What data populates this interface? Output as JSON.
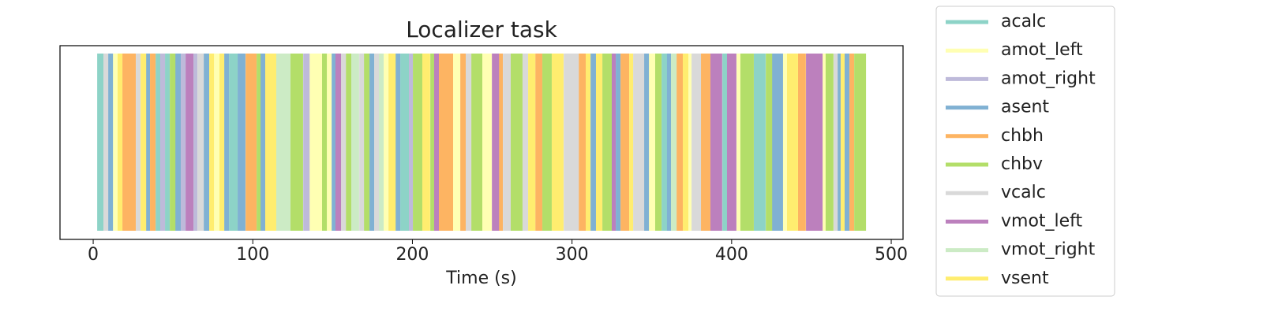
{
  "chart_data": {
    "type": "event",
    "title": "Localizer task",
    "xlabel": "Time (s)",
    "xlim": [
      -20.8,
      507.4
    ],
    "xticks": [
      0,
      100,
      200,
      300,
      400,
      500
    ],
    "series": [
      {
        "name": "acalc",
        "color": "#8dd3c7",
        "onsets": [
          2.5,
          39.1,
          45.0,
          85.1,
          192.4,
          356.1,
          394.2,
          413.9
        ],
        "durations": [
          4.0,
          3.0,
          3.0,
          5.4,
          5.4,
          3.5,
          3.0,
          7.4
        ]
      },
      {
        "name": "amot_left",
        "color": "#ffffb3",
        "onsets": [
          12.4,
          75.7,
          135.5,
          146.4,
          182.0,
          225.5,
          243.8,
          348.2,
          372.9,
          403.1,
          432.2,
          457.0
        ],
        "durations": [
          3.0,
          3.5,
          7.9,
          3.0,
          3.0,
          4.5,
          5.9,
          4.0,
          2.0,
          2.5,
          2.5,
          2.0
        ]
      },
      {
        "name": "amot_right",
        "color": "#bebada",
        "onsets": [
          42.0,
          54.9,
          62.8,
          131.6,
          197.8
        ],
        "durations": [
          3.0,
          3.0,
          2.5,
          4.0,
          2.5
        ]
      },
      {
        "name": "asent",
        "color": "#80b1d3",
        "onsets": [
          9.4,
          33.1,
          51.4,
          69.2,
          82.1,
          90.5,
          104.8,
          149.4,
          173.1,
          189.4,
          311.6,
          327.4,
          345.2,
          359.5,
          425.3,
          466.4,
          470.8
        ],
        "durations": [
          3.0,
          2.5,
          3.5,
          3.5,
          3.0,
          4.9,
          3.0,
          2.5,
          3.0,
          3.0,
          3.5,
          3.0,
          3.0,
          2.5,
          6.9,
          2.0,
          3.0
        ]
      },
      {
        "name": "chbh",
        "color": "#fdb462",
        "onsets": [
          18.3,
          35.6,
          95.5,
          216.6,
          230.0,
          254.2,
          277.0,
          304.2,
          330.4,
          365.5,
          380.8,
          441.6,
          473.8
        ],
        "durations": [
          8.4,
          3.5,
          6.9,
          8.9,
          3.5,
          2.5,
          4.5,
          4.5,
          5.4,
          4.0,
          5.9,
          4.9,
          3.0
        ]
      },
      {
        "name": "chbv",
        "color": "#b3de69",
        "onsets": [
          48.0,
          102.4,
          123.6,
          143.4,
          158.3,
          169.6,
          200.3,
          211.2,
          236.9,
          261.6,
          281.4,
          319.0,
          352.1,
          405.5,
          421.4,
          458.9,
          476.8
        ],
        "durations": [
          3.5,
          2.5,
          7.9,
          3.0,
          3.5,
          3.5,
          5.9,
          2.5,
          6.9,
          7.4,
          5.9,
          5.9,
          4.0,
          8.4,
          4.0,
          4.9,
          7.4
        ]
      },
      {
        "name": "vcalc",
        "color": "#d9d9d9",
        "onsets": [
          6.4,
          26.7,
          65.3,
          155.3,
          166.7,
          176.1,
          233.4,
          256.7,
          269.0,
          294.8,
          338.3,
          374.9,
          463.9
        ],
        "durations": [
          3.0,
          3.0,
          4.0,
          3.0,
          3.0,
          3.0,
          3.5,
          4.9,
          3.5,
          9.4,
          6.9,
          5.9,
          2.5
        ]
      },
      {
        "name": "vmot_left",
        "color": "#bc80bd",
        "onsets": [
          57.9,
          151.8,
          213.6,
          249.8,
          324.9,
          386.7,
          397.1,
          446.6
        ],
        "durations": [
          4.9,
          3.5,
          3.0,
          4.5,
          2.5,
          7.4,
          5.9,
          10.4
        ]
      },
      {
        "name": "vmot_right",
        "color": "#ccebc5",
        "onsets": [
          114.7,
          161.7,
          179.0,
          362.0
        ],
        "durations": [
          8.9,
          4.9,
          3.0,
          3.5
        ]
      },
      {
        "name": "vsent",
        "color": "#ffed6f",
        "onsets": [
          15.3,
          29.7,
          72.7,
          79.1,
          107.8,
          185.0,
          206.2,
          272.5,
          287.3,
          308.6,
          315.0,
          335.8,
          369.4,
          434.7,
          468.3
        ],
        "durations": [
          3.0,
          3.5,
          3.0,
          3.0,
          6.9,
          4.5,
          4.9,
          4.5,
          7.4,
          3.0,
          4.0,
          2.5,
          3.5,
          6.9,
          2.5
        ]
      }
    ]
  }
}
